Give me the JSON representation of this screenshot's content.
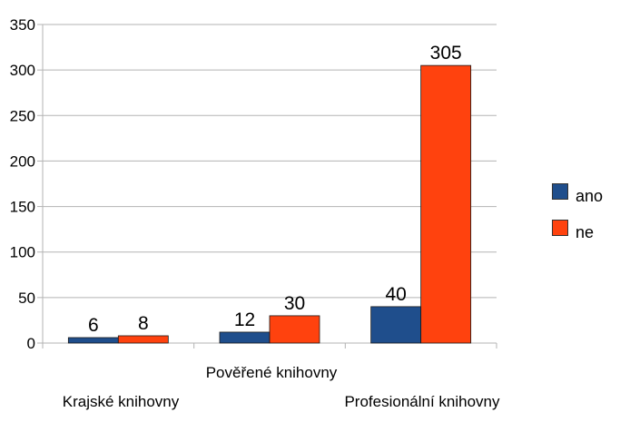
{
  "chart_data": {
    "type": "bar",
    "categories": [
      "Krajské knihovny",
      "Pověřené knihovny",
      "Profesionální knihovny"
    ],
    "series": [
      {
        "name": "ano",
        "values": [
          6,
          12,
          40
        ],
        "color": "#1f4e8c"
      },
      {
        "name": "ne",
        "values": [
          8,
          30,
          305
        ],
        "color": "#ff420e"
      }
    ],
    "ylim": [
      0,
      350
    ],
    "yticks": [
      "0",
      "50",
      "100",
      "150",
      "200",
      "250",
      "300",
      "350"
    ],
    "grid": true,
    "legend_position": "right",
    "data_labels": true
  }
}
